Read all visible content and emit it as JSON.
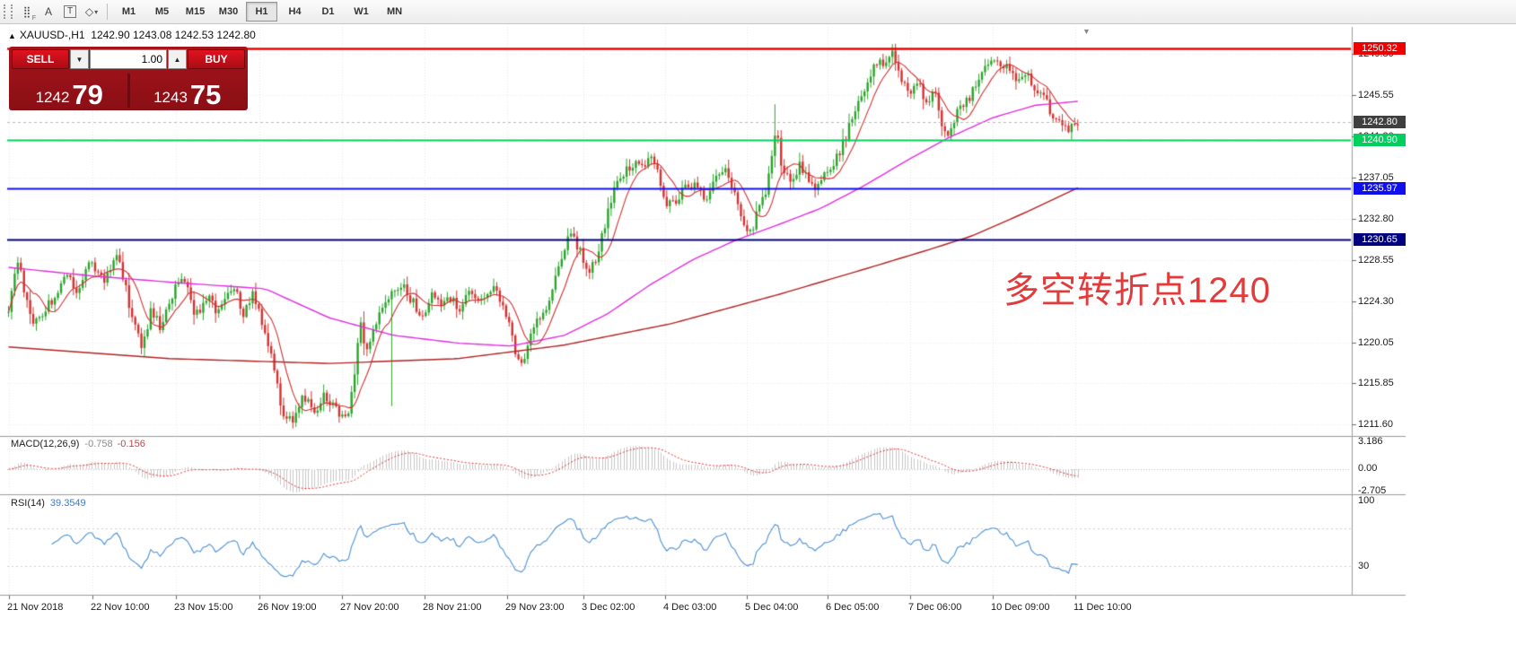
{
  "toolbar": {
    "timeframes": [
      "M1",
      "M5",
      "M15",
      "M30",
      "H1",
      "H4",
      "D1",
      "W1",
      "MN"
    ],
    "active_timeframe": "H1",
    "text_tool_label": "A",
    "label_tool_label": "T"
  },
  "chart": {
    "title": "XAUUSD-,H1",
    "ohlc_text": "1242.90 1243.08 1242.53 1242.80"
  },
  "trade_panel": {
    "sell_label": "SELL",
    "buy_label": "BUY",
    "volume": "1.00",
    "sell_price_main": "1242",
    "sell_price_big": "79",
    "buy_price_main": "1243",
    "buy_price_big": "75"
  },
  "annotation": {
    "text": "多空转折点1240",
    "color": "#e23b3b"
  },
  "price_axis": {
    "labels": [
      "1249.80",
      "1245.55",
      "1241.30",
      "1237.05",
      "1232.80",
      "1228.55",
      "1224.30",
      "1220.05",
      "1215.85",
      "1211.60"
    ],
    "badges": [
      {
        "label": "1250.32",
        "price": 1250.32,
        "bg": "#ee0000"
      },
      {
        "label": "1242.80",
        "price": 1242.8,
        "bg": "#3f3f3f"
      },
      {
        "label": "1240.90",
        "price": 1240.9,
        "bg": "#00cf5d"
      },
      {
        "label": "1235.97",
        "price": 1235.97,
        "bg": "#1010ee"
      },
      {
        "label": "1230.65",
        "price": 1230.65,
        "bg": "#00007f"
      }
    ]
  },
  "time_axis": {
    "labels": [
      "21 Nov 2018",
      "22 Nov 10:00",
      "23 Nov 15:00",
      "26 Nov 19:00",
      "27 Nov 20:00",
      "28 Nov 21:00",
      "29 Nov 23:00",
      "3 Dec 02:00",
      "4 Dec 03:00",
      "5 Dec 04:00",
      "6 Dec 05:00",
      "7 Dec 06:00",
      "10 Dec 09:00",
      "11 Dec 10:00"
    ]
  },
  "macd": {
    "label": "MACD(12,26,9)",
    "value_main": "-0.758",
    "value_signal": "-0.156",
    "scale": [
      "3.186",
      "0.00",
      "-2.705"
    ]
  },
  "rsi": {
    "label": "RSI(14)",
    "value": "39.3549",
    "scale": [
      "100",
      "30"
    ]
  },
  "chart_data": {
    "type": "candlestick",
    "symbol": "XAUUSD-",
    "period": "H1",
    "ohlc_current": {
      "open": 1242.9,
      "high": 1243.08,
      "low": 1242.53,
      "close": 1242.8
    },
    "bid": 1242.79,
    "ask": 1243.75,
    "visible_price_top": 1252.5,
    "visible_price_bottom": 1210.5,
    "colors": {
      "up": "#2ba32b",
      "down": "#d63030",
      "ma_fast": "#d03030",
      "ma_mid": "#e02ee0",
      "ma_slow": "#b22222",
      "rsi_line": "#4a8fd4",
      "macd_hist": "#c6c6c6",
      "macd_signal": "#e03030"
    },
    "hlines": [
      {
        "price": 1230.65,
        "color": "#00007f",
        "width": 2
      },
      {
        "price": 1235.97,
        "color": "#1010ee",
        "width": 2
      },
      {
        "price": 1240.9,
        "color": "#00cf5d",
        "width": 2
      },
      {
        "price": 1242.8,
        "color": "#b8b8b8",
        "width": 1,
        "style": "dashed"
      },
      {
        "price": 1250.32,
        "color": "#ee0000",
        "width": 2.5
      }
    ],
    "price_path_anchors": [
      [
        0,
        1223.5
      ],
      [
        0.009,
        1228.8
      ],
      [
        0.022,
        1221.5
      ],
      [
        0.038,
        1224.0
      ],
      [
        0.054,
        1227.0
      ],
      [
        0.065,
        1225.5
      ],
      [
        0.077,
        1228.5
      ],
      [
        0.091,
        1226.5
      ],
      [
        0.102,
        1229.2
      ],
      [
        0.113,
        1224.0
      ],
      [
        0.124,
        1219.6
      ],
      [
        0.134,
        1223.5
      ],
      [
        0.143,
        1221.5
      ],
      [
        0.153,
        1225.0
      ],
      [
        0.163,
        1226.8
      ],
      [
        0.175,
        1222.8
      ],
      [
        0.185,
        1224.8
      ],
      [
        0.197,
        1223.0
      ],
      [
        0.21,
        1226.0
      ],
      [
        0.22,
        1223.0
      ],
      [
        0.229,
        1225.2
      ],
      [
        0.239,
        1221.5
      ],
      [
        0.247,
        1218.0
      ],
      [
        0.256,
        1212.8
      ],
      [
        0.267,
        1212.3
      ],
      [
        0.277,
        1214.6
      ],
      [
        0.286,
        1212.8
      ],
      [
        0.296,
        1214.8
      ],
      [
        0.306,
        1213.2
      ],
      [
        0.316,
        1211.9
      ],
      [
        0.323,
        1216.5
      ],
      [
        0.329,
        1222.3
      ],
      [
        0.335,
        1218.8
      ],
      [
        0.344,
        1222.5
      ],
      [
        0.355,
        1225.0
      ],
      [
        0.366,
        1226.2
      ],
      [
        0.376,
        1224.6
      ],
      [
        0.387,
        1222.6
      ],
      [
        0.396,
        1225.2
      ],
      [
        0.404,
        1223.6
      ],
      [
        0.414,
        1224.8
      ],
      [
        0.423,
        1223.4
      ],
      [
        0.432,
        1225.6
      ],
      [
        0.443,
        1224.2
      ],
      [
        0.454,
        1225.4
      ],
      [
        0.465,
        1223.2
      ],
      [
        0.473,
        1219.6
      ],
      [
        0.481,
        1217.2
      ],
      [
        0.489,
        1221.0
      ],
      [
        0.498,
        1222.8
      ],
      [
        0.508,
        1225.0
      ],
      [
        0.516,
        1228.7
      ],
      [
        0.526,
        1231.2
      ],
      [
        0.534,
        1229.8
      ],
      [
        0.543,
        1227.2
      ],
      [
        0.551,
        1229.0
      ],
      [
        0.56,
        1233.2
      ],
      [
        0.568,
        1236.8
      ],
      [
        0.576,
        1237.5
      ],
      [
        0.586,
        1238.8
      ],
      [
        0.595,
        1237.6
      ],
      [
        0.6,
        1239.6
      ],
      [
        0.608,
        1237.0
      ],
      [
        0.616,
        1234.0
      ],
      [
        0.625,
        1234.8
      ],
      [
        0.634,
        1236.0
      ],
      [
        0.643,
        1236.8
      ],
      [
        0.652,
        1234.8
      ],
      [
        0.66,
        1236.6
      ],
      [
        0.669,
        1237.8
      ],
      [
        0.677,
        1236.2
      ],
      [
        0.686,
        1233.0
      ],
      [
        0.694,
        1231.2
      ],
      [
        0.701,
        1234.0
      ],
      [
        0.71,
        1236.2
      ],
      [
        0.718,
        1242.8
      ],
      [
        0.723,
        1238.0
      ],
      [
        0.731,
        1236.4
      ],
      [
        0.74,
        1238.2
      ],
      [
        0.747,
        1237.4
      ],
      [
        0.755,
        1235.2
      ],
      [
        0.763,
        1237.6
      ],
      [
        0.772,
        1238.8
      ],
      [
        0.781,
        1240.6
      ],
      [
        0.789,
        1243.2
      ],
      [
        0.798,
        1245.6
      ],
      [
        0.806,
        1247.8
      ],
      [
        0.814,
        1249.6
      ],
      [
        0.821,
        1248.4
      ],
      [
        0.828,
        1249.9
      ],
      [
        0.835,
        1247.4
      ],
      [
        0.843,
        1245.6
      ],
      [
        0.851,
        1246.8
      ],
      [
        0.858,
        1244.2
      ],
      [
        0.866,
        1245.8
      ],
      [
        0.873,
        1242.4
      ],
      [
        0.879,
        1241.4
      ],
      [
        0.887,
        1243.6
      ],
      [
        0.895,
        1244.8
      ],
      [
        0.903,
        1246.2
      ],
      [
        0.911,
        1247.8
      ],
      [
        0.919,
        1249.2
      ],
      [
        0.927,
        1248.2
      ],
      [
        0.935,
        1248.8
      ],
      [
        0.943,
        1247.2
      ],
      [
        0.951,
        1247.8
      ],
      [
        0.959,
        1246.2
      ],
      [
        0.967,
        1245.4
      ],
      [
        0.975,
        1243.8
      ],
      [
        0.983,
        1242.4
      ],
      [
        0.991,
        1241.6
      ],
      [
        1,
        1242.8
      ]
    ],
    "wick_spikes": [
      {
        "t": 0.359,
        "low": 1213.5
      },
      {
        "t": 0.718,
        "high": 1244.6
      }
    ],
    "ma_mid_anchors": [
      [
        0,
        1227.8
      ],
      [
        0.08,
        1226.9
      ],
      [
        0.16,
        1226.2
      ],
      [
        0.24,
        1225.6
      ],
      [
        0.3,
        1222.6
      ],
      [
        0.36,
        1220.8
      ],
      [
        0.42,
        1220.0
      ],
      [
        0.47,
        1219.7
      ],
      [
        0.52,
        1220.8
      ],
      [
        0.56,
        1223.0
      ],
      [
        0.6,
        1226.0
      ],
      [
        0.64,
        1228.6
      ],
      [
        0.68,
        1230.6
      ],
      [
        0.72,
        1232.2
      ],
      [
        0.76,
        1233.9
      ],
      [
        0.8,
        1236.2
      ],
      [
        0.84,
        1238.8
      ],
      [
        0.88,
        1241.2
      ],
      [
        0.92,
        1243.2
      ],
      [
        0.96,
        1244.5
      ],
      [
        1,
        1244.9
      ]
    ],
    "ma_slow_anchors": [
      [
        0,
        1219.6
      ],
      [
        0.15,
        1218.4
      ],
      [
        0.3,
        1217.9
      ],
      [
        0.42,
        1218.4
      ],
      [
        0.52,
        1219.8
      ],
      [
        0.62,
        1222.0
      ],
      [
        0.72,
        1225.0
      ],
      [
        0.8,
        1227.6
      ],
      [
        0.86,
        1229.6
      ],
      [
        0.9,
        1231.0
      ],
      [
        0.95,
        1233.4
      ],
      [
        1,
        1236.0
      ]
    ],
    "indicators": [
      {
        "name": "MACD",
        "params": [
          12,
          26,
          9
        ],
        "values": [
          -0.758,
          -0.156
        ],
        "scale_labels": [
          3.186,
          0.0,
          -2.705
        ]
      },
      {
        "name": "RSI",
        "params": [
          14
        ],
        "value": 39.3549,
        "scale_labels": [
          100,
          30
        ]
      }
    ]
  }
}
